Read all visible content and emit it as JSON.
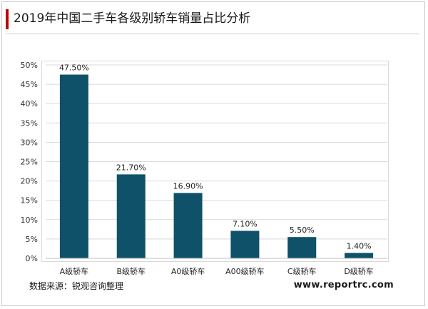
{
  "header": {
    "title": "2019年中国二手车各级别轿车销量占比分析"
  },
  "footer": {
    "source": "数据来源：锐观咨询整理",
    "website": "www.reportrc.com"
  },
  "colors": {
    "bar": "#0e5169",
    "accent": "#c00000",
    "grid": "#d9d9d9"
  },
  "chart_data": {
    "type": "bar",
    "title": "2019年中国二手车各级别轿车销量占比分析",
    "xlabel": "",
    "ylabel": "",
    "categories": [
      "A级轿车",
      "B级轿车",
      "A0级轿车",
      "A00级轿车",
      "C级轿车",
      "D级轿车"
    ],
    "values": [
      47.5,
      21.7,
      16.9,
      7.1,
      5.5,
      1.4
    ],
    "value_labels": [
      "47.50%",
      "21.70%",
      "16.90%",
      "7.10%",
      "5.50%",
      "1.40%"
    ],
    "ylim": [
      0,
      50
    ],
    "yticks": [
      0,
      5,
      10,
      15,
      20,
      25,
      30,
      35,
      40,
      45,
      50
    ],
    "ytick_labels": [
      "0%",
      "5%",
      "10%",
      "15%",
      "20%",
      "25%",
      "30%",
      "35%",
      "40%",
      "45%",
      "50%"
    ],
    "grid": true,
    "legend": false
  }
}
